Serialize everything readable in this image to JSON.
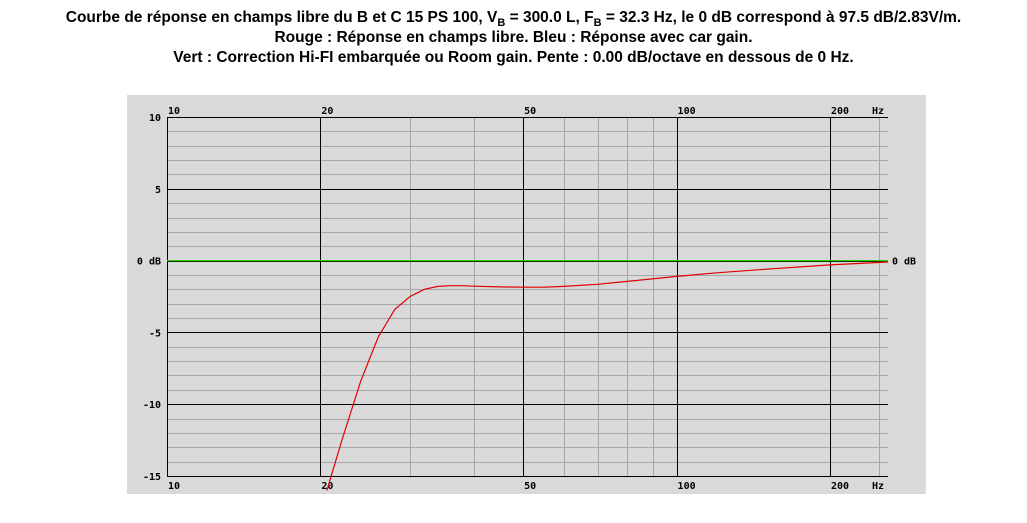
{
  "title": {
    "line1_pre_vb": "Courbe de réponse en champs libre du B et C 15 PS 100, V",
    "line1_vb_sub": "B",
    "line1_mid": " = 300.0 L, F",
    "line1_fb_sub": "B",
    "line1_post": " = 32.3 Hz, le 0 dB correspond à 97.5 dB/2.83V/m.",
    "line2": "Rouge : Réponse en champs libre. Bleu : Réponse avec car gain.",
    "line3": "Vert : Correction Hi-FI embarquée ou Room gain. Pente : 0.00 dB/octave en dessous de 0 Hz."
  },
  "colors": {
    "plot_background": "#d9d9d9",
    "major_grid": "#000000",
    "minor_grid": "#a6a6a6",
    "red_curve": "#e00000",
    "green_curve": "#33cc00"
  },
  "chart_data": {
    "type": "line",
    "x_scale": "log",
    "xlim": [
      10,
      260
    ],
    "ylim": [
      -15,
      10
    ],
    "x_tick_labels": [
      {
        "value": 10,
        "label": "10"
      },
      {
        "value": 20,
        "label": "20"
      },
      {
        "value": 50,
        "label": "50"
      },
      {
        "value": 100,
        "label": "100"
      },
      {
        "value": 200,
        "label": "200"
      }
    ],
    "x_unit_label": "Hz",
    "y_tick_labels": [
      {
        "value": 10,
        "label": "10"
      },
      {
        "value": 5,
        "label": "5"
      },
      {
        "value": 0,
        "label": "0 dB"
      },
      {
        "value": -5,
        "label": "-5"
      },
      {
        "value": -10,
        "label": "-10"
      },
      {
        "value": -15,
        "label": "-15"
      }
    ],
    "y_right_label": "0 dB",
    "grid": true,
    "series": [
      {
        "color": "red",
        "x": [
          20.6,
          22,
          24,
          26,
          28,
          30,
          32,
          34,
          36,
          38,
          40,
          45,
          50,
          55,
          60,
          70,
          80,
          100,
          120,
          150,
          200,
          260
        ],
        "y": [
          -16.0,
          -12.6,
          -8.4,
          -5.3,
          -3.4,
          -2.5,
          -2.0,
          -1.8,
          -1.75,
          -1.75,
          -1.78,
          -1.83,
          -1.85,
          -1.85,
          -1.8,
          -1.65,
          -1.45,
          -1.1,
          -0.85,
          -0.6,
          -0.3,
          -0.1
        ]
      },
      {
        "color": "green",
        "x": [
          10,
          260
        ],
        "y": [
          0,
          0
        ]
      }
    ]
  }
}
